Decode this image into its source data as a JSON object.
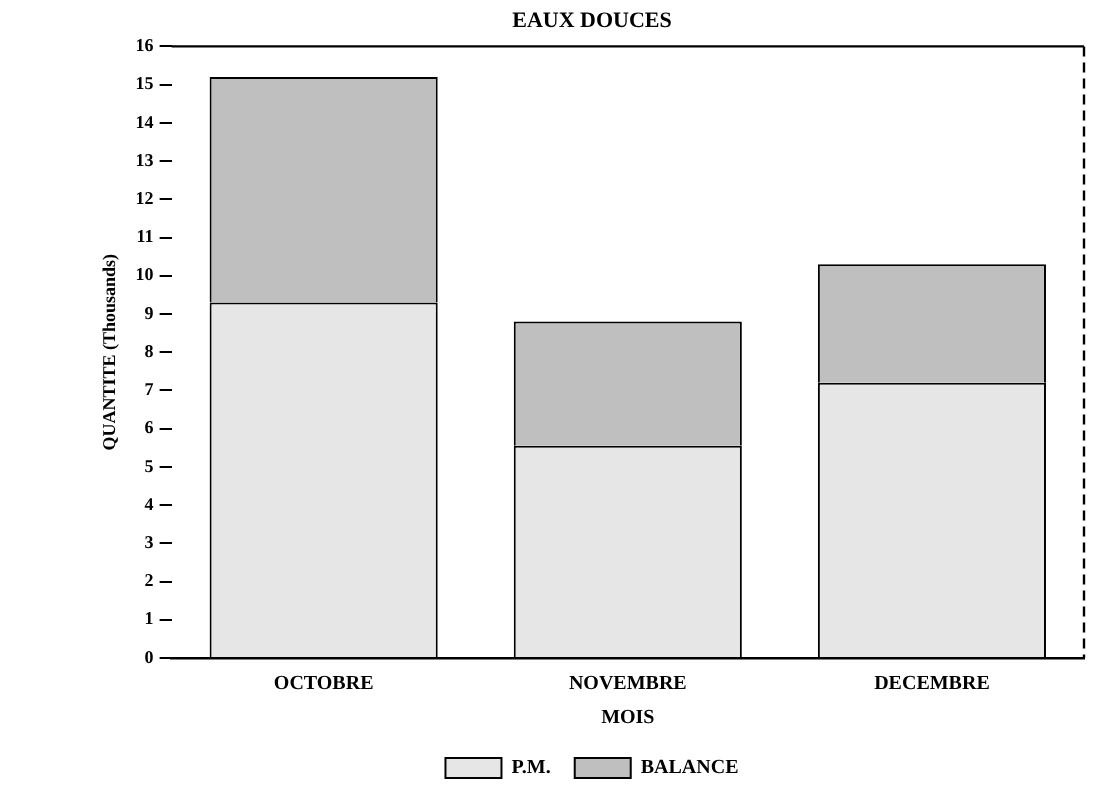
{
  "chart_data": {
    "type": "bar",
    "title": "EAUX DOUCES",
    "xlabel": "MOIS",
    "ylabel": "QUANTITE (Thousands)",
    "categories": [
      "OCTOBRE",
      "NOVEMBRE",
      "DECEMBRE"
    ],
    "stacked": true,
    "series": [
      {
        "name": "P.M.",
        "color": "#e6e6e6",
        "values": [
          9.3,
          5.55,
          7.2
        ]
      },
      {
        "name": "BALANCE",
        "color": "#bfbfbf",
        "values": [
          5.9,
          3.25,
          3.1
        ]
      }
    ],
    "ylim": [
      0,
      16
    ],
    "yticks": [
      0,
      1,
      2,
      3,
      4,
      5,
      6,
      7,
      8,
      9,
      10,
      11,
      12,
      13,
      14,
      15,
      16
    ],
    "grid": false,
    "legend": "bottom"
  }
}
